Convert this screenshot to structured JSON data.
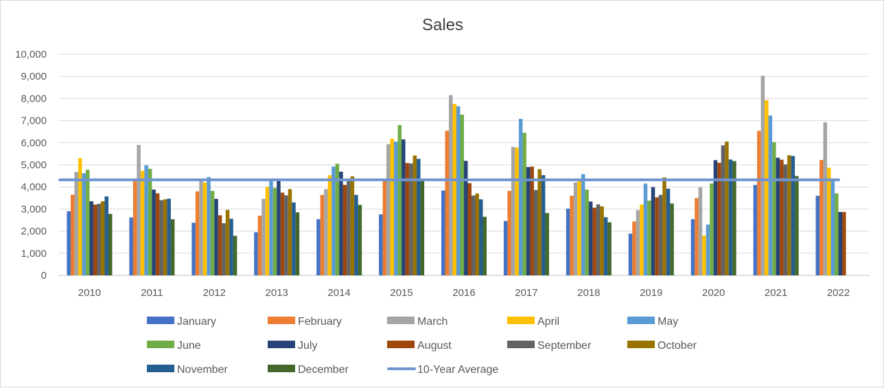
{
  "chart_data": {
    "type": "bar",
    "title": "Sales",
    "xlabel": "",
    "ylabel": "",
    "ylim": [
      0,
      10000
    ],
    "yticks": [
      "0",
      "1,000",
      "2,000",
      "3,000",
      "4,000",
      "5,000",
      "6,000",
      "7,000",
      "8,000",
      "9,000",
      "10,000"
    ],
    "grid": true,
    "legend_position": "bottom",
    "categories": [
      "2010",
      "2011",
      "2012",
      "2013",
      "2014",
      "2015",
      "2016",
      "2017",
      "2018",
      "2019",
      "2020",
      "2021",
      "2022"
    ],
    "series": [
      {
        "name": "January",
        "color": "#4472C4",
        "values": [
          2900,
          2620,
          2380,
          1950,
          2540,
          2760,
          3840,
          2460,
          3020,
          1890,
          2540,
          4090,
          3600
        ]
      },
      {
        "name": "February",
        "color": "#ED7D31",
        "values": [
          3650,
          4300,
          3800,
          2700,
          3640,
          4350,
          6540,
          3820,
          3600,
          2440,
          3500,
          6540,
          5220
        ]
      },
      {
        "name": "March",
        "color": "#A5A5A5",
        "values": [
          4680,
          5900,
          4350,
          3460,
          3900,
          5930,
          8150,
          5810,
          4200,
          2950,
          3980,
          9030,
          6920
        ]
      },
      {
        "name": "April",
        "color": "#FFC000",
        "values": [
          5300,
          4730,
          4200,
          4000,
          4530,
          6180,
          7750,
          5780,
          4300,
          3200,
          1800,
          7920,
          4870
        ]
      },
      {
        "name": "May",
        "color": "#5B9BD5",
        "values": [
          4620,
          4980,
          4450,
          4330,
          4920,
          6050,
          7650,
          7080,
          4580,
          4150,
          2300,
          7230,
          4300
        ]
      },
      {
        "name": "June",
        "color": "#70AD47",
        "values": [
          4780,
          4820,
          3820,
          3960,
          5050,
          6800,
          7270,
          6450,
          3880,
          3380,
          4160,
          6030,
          3710
        ]
      },
      {
        "name": "July",
        "color": "#264478",
        "values": [
          3350,
          3880,
          3460,
          4300,
          4690,
          6150,
          5180,
          4900,
          3340,
          3990,
          5210,
          5320,
          2870
        ]
      },
      {
        "name": "August",
        "color": "#9E480E",
        "values": [
          3200,
          3710,
          2720,
          3740,
          4090,
          5080,
          4170,
          4920,
          3060,
          3530,
          5090,
          5230,
          2870
        ]
      },
      {
        "name": "September",
        "color": "#636363",
        "values": [
          3240,
          3400,
          2360,
          3620,
          4320,
          5060,
          3610,
          3860,
          3210,
          3640,
          5880,
          5020,
          null
        ]
      },
      {
        "name": "October",
        "color": "#997300",
        "values": [
          3350,
          3440,
          2960,
          3900,
          4480,
          5420,
          3700,
          4800,
          3120,
          4430,
          6050,
          5430,
          null
        ]
      },
      {
        "name": "November",
        "color": "#255E91",
        "values": [
          3570,
          3470,
          2560,
          3300,
          3640,
          5270,
          3440,
          4530,
          2630,
          3920,
          5240,
          5400,
          null
        ]
      },
      {
        "name": "December",
        "color": "#43682B",
        "values": [
          2780,
          2540,
          1790,
          2850,
          3190,
          4330,
          2650,
          2820,
          2400,
          3250,
          5170,
          4490,
          null
        ]
      }
    ],
    "average_line": {
      "name": "10-Year Average",
      "value": 4320,
      "color": "#6F94D1"
    }
  }
}
